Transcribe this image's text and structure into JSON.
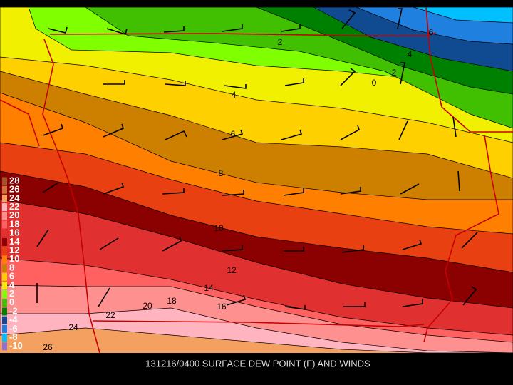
{
  "caption": "131216/0400 SURFACE DEW POINT (F) AND WINDS",
  "legend": [
    {
      "label": "28",
      "color": "#a0522d"
    },
    {
      "label": "26",
      "color": "#d0703c"
    },
    {
      "label": "24",
      "color": "#f4a060"
    },
    {
      "label": "22",
      "color": "#ffb4c0"
    },
    {
      "label": "20",
      "color": "#ff9090"
    },
    {
      "label": "18",
      "color": "#ff6060"
    },
    {
      "label": "16",
      "color": "#e03030"
    },
    {
      "label": "14",
      "color": "#8b0000"
    },
    {
      "label": "12",
      "color": "#e84010"
    },
    {
      "label": "10",
      "color": "#ff8000"
    },
    {
      "label": "8",
      "color": "#cd8000"
    },
    {
      "label": "6",
      "color": "#ffd000"
    },
    {
      "label": "4",
      "color": "#f0f000"
    },
    {
      "label": "2",
      "color": "#80ff00"
    },
    {
      "label": "0",
      "color": "#40c000"
    },
    {
      "label": "-2",
      "color": "#008000"
    },
    {
      "label": "-4",
      "color": "#104a90"
    },
    {
      "label": "-6",
      "color": "#2080e0"
    },
    {
      "label": "-8",
      "color": "#00c0ff"
    },
    {
      "label": "-10",
      "color": "#9070d0"
    }
  ],
  "contour_labels": [
    "2",
    "0",
    "2",
    "4",
    "6",
    "4",
    "6",
    "8",
    "10",
    "12",
    "14",
    "16",
    "18",
    "20",
    "22",
    "24",
    "26"
  ]
}
